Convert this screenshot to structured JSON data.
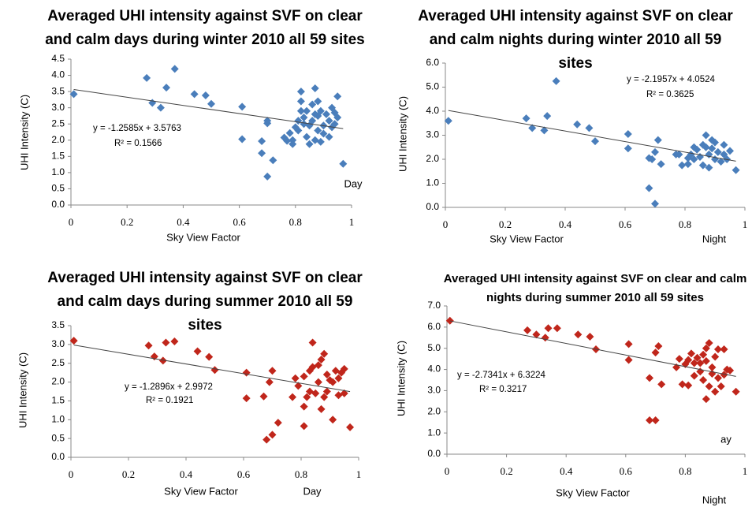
{
  "chart_data": [
    {
      "type": "scatter",
      "title": "Averaged UHI intensity against SVF on clear and calm days during winter 2010 all 59 sites",
      "x_label": "Sky View Factor",
      "y_label": "UHI Intensity (C)",
      "color": "#4a7ebb",
      "xlim": [
        0,
        1
      ],
      "xticks": [
        0,
        0.2,
        0.4,
        0.6,
        0.8,
        1
      ],
      "ylim": [
        0,
        4.5
      ],
      "yticks": [
        {
          "value": 0,
          "label": "0.0"
        },
        0.5,
        {
          "value": 1,
          "label": "1.0"
        },
        1.5,
        {
          "value": 2,
          "label": "2.0"
        },
        2.5,
        {
          "value": 3,
          "label": "3.0"
        },
        3.5,
        {
          "value": 4,
          "label": "4.0"
        },
        4.5
      ],
      "x": [
        0.01,
        0.27,
        0.29,
        0.32,
        0.34,
        0.37,
        0.44,
        0.48,
        0.5,
        0.61,
        0.61,
        0.68,
        0.68,
        0.7,
        0.7,
        0.7,
        0.72,
        0.76,
        0.77,
        0.78,
        0.79,
        0.79,
        0.8,
        0.81,
        0.81,
        0.82,
        0.82,
        0.82,
        0.83,
        0.83,
        0.84,
        0.84,
        0.85,
        0.85,
        0.86,
        0.86,
        0.87,
        0.87,
        0.87,
        0.88,
        0.88,
        0.88,
        0.89,
        0.89,
        0.9,
        0.9,
        0.91,
        0.92,
        0.92,
        0.93,
        0.93,
        0.94,
        0.94,
        0.95,
        0.95,
        0.97
      ],
      "values": [
        3.42,
        3.92,
        3.15,
        3.0,
        3.62,
        4.2,
        3.42,
        3.38,
        3.12,
        3.03,
        2.03,
        1.97,
        1.6,
        2.6,
        2.52,
        0.88,
        1.38,
        2.08,
        1.98,
        2.22,
        2.0,
        1.88,
        2.4,
        2.6,
        2.3,
        2.9,
        3.5,
        3.2,
        2.7,
        2.5,
        2.1,
        2.9,
        2.45,
        1.88,
        3.1,
        2.6,
        3.6,
        2.0,
        2.8,
        3.2,
        2.3,
        2.75,
        2.9,
        1.95,
        2.45,
        2.2,
        2.8,
        2.6,
        2.1,
        3.0,
        2.4,
        2.85,
        2.5,
        3.35,
        2.7,
        1.27
      ],
      "trendline": {
        "slope": -1.2585,
        "intercept": 3.5763,
        "equation_label": "y = -1.2585x + 3.5763",
        "r2_label": "R² = 0.1566"
      },
      "annotations": [
        "Day"
      ]
    },
    {
      "type": "scatter",
      "title": "Averaged UHI intensity against SVF on clear and calm nights during winter 2010 all 59 sites",
      "x_label": "Sky View Factor",
      "y_label": "UHI Intensity (C)",
      "color": "#4a7ebb",
      "xlim": [
        0,
        1
      ],
      "xticks": [
        0,
        0.2,
        0.4,
        0.6,
        0.8,
        1
      ],
      "ylim": [
        0,
        6
      ],
      "yticks": [
        {
          "value": 0,
          "label": "0.0"
        },
        {
          "value": 1,
          "label": "1.0"
        },
        {
          "value": 2,
          "label": "2.0"
        },
        {
          "value": 3,
          "label": "3.0"
        },
        {
          "value": 4,
          "label": "4.0"
        },
        {
          "value": 5,
          "label": "5.0"
        },
        {
          "value": 6,
          "label": "6.0"
        }
      ],
      "x": [
        0.01,
        0.27,
        0.29,
        0.33,
        0.34,
        0.37,
        0.44,
        0.48,
        0.5,
        0.61,
        0.61,
        0.68,
        0.68,
        0.69,
        0.7,
        0.7,
        0.71,
        0.72,
        0.77,
        0.78,
        0.79,
        0.81,
        0.81,
        0.82,
        0.83,
        0.83,
        0.84,
        0.85,
        0.86,
        0.86,
        0.87,
        0.87,
        0.88,
        0.88,
        0.89,
        0.89,
        0.9,
        0.9,
        0.91,
        0.92,
        0.93,
        0.93,
        0.94,
        0.95,
        0.97
      ],
      "values": [
        3.6,
        3.7,
        3.3,
        3.2,
        3.8,
        5.25,
        3.45,
        3.3,
        2.75,
        3.05,
        2.45,
        2.05,
        0.8,
        2.0,
        2.3,
        0.15,
        2.8,
        1.8,
        2.2,
        2.2,
        1.75,
        2.05,
        1.8,
        2.2,
        2.5,
        2.0,
        2.4,
        2.1,
        2.6,
        1.75,
        3.0,
        2.5,
        1.65,
        2.2,
        2.8,
        2.45,
        2.0,
        2.7,
        2.3,
        1.9,
        2.6,
        2.2,
        2.0,
        2.35,
        1.55
      ],
      "trendline": {
        "slope": -2.1957,
        "intercept": 4.0524,
        "equation_label": "y = -2.1957x + 4.0524",
        "r2_label": "R² = 0.3625"
      },
      "annotations": [
        "Night"
      ]
    },
    {
      "type": "scatter",
      "title": "Averaged UHI intensity against SVF on clear and calm days during summer 2010 all 59 sites",
      "x_label": "Sky View Factor",
      "y_label": "UHI Intensity (C)",
      "color": "#c0261b",
      "xlim": [
        0,
        1
      ],
      "xticks": [
        0,
        0.2,
        0.4,
        0.6,
        0.8,
        1
      ],
      "ylim": [
        0,
        3.5
      ],
      "yticks": [
        {
          "value": 0,
          "label": "0.0"
        },
        0.5,
        {
          "value": 1,
          "label": "1.0"
        },
        1.5,
        {
          "value": 2,
          "label": "2.0"
        },
        2.5,
        {
          "value": 3,
          "label": "3.0"
        },
        3.5
      ],
      "x": [
        0.01,
        0.27,
        0.29,
        0.32,
        0.33,
        0.36,
        0.44,
        0.48,
        0.5,
        0.61,
        0.61,
        0.67,
        0.68,
        0.69,
        0.7,
        0.7,
        0.72,
        0.77,
        0.78,
        0.79,
        0.81,
        0.81,
        0.81,
        0.82,
        0.83,
        0.83,
        0.84,
        0.84,
        0.85,
        0.86,
        0.86,
        0.87,
        0.87,
        0.88,
        0.88,
        0.89,
        0.89,
        0.9,
        0.91,
        0.91,
        0.92,
        0.93,
        0.93,
        0.94,
        0.95,
        0.95,
        0.97
      ],
      "values": [
        3.1,
        2.97,
        2.68,
        2.57,
        3.05,
        3.08,
        2.82,
        2.67,
        2.32,
        2.25,
        1.57,
        1.62,
        0.47,
        2.0,
        0.6,
        2.3,
        0.92,
        1.6,
        2.1,
        1.9,
        0.83,
        1.35,
        2.15,
        1.6,
        2.3,
        1.75,
        3.05,
        2.4,
        1.7,
        2.0,
        2.45,
        1.28,
        2.6,
        2.75,
        1.6,
        2.2,
        1.75,
        2.05,
        1.0,
        2.0,
        2.3,
        1.65,
        2.1,
        2.25,
        1.7,
        2.35,
        0.8
      ],
      "trendline": {
        "slope": -1.2896,
        "intercept": 2.9972,
        "equation_label": "y = -1.2896x + 2.9972",
        "r2_label": "R² = 0.1921"
      },
      "annotations": [
        "Day"
      ]
    },
    {
      "type": "scatter",
      "title": "Averaged UHI intensity against SVF on clear and calm nights during summer 2010 all 59 sites",
      "x_label": "Sky View Factor",
      "y_label": "UHI Intensity (C)",
      "color": "#c0261b",
      "xlim": [
        0,
        1
      ],
      "xticks": [
        0,
        0.2,
        0.4,
        0.6,
        0.8,
        1
      ],
      "ylim": [
        0,
        7
      ],
      "yticks": [
        {
          "value": 0,
          "label": "0.0"
        },
        {
          "value": 1,
          "label": "1.0"
        },
        {
          "value": 2,
          "label": "2.0"
        },
        {
          "value": 3,
          "label": "3.0"
        },
        {
          "value": 4,
          "label": "4.0"
        },
        {
          "value": 5,
          "label": "5.0"
        },
        {
          "value": 6,
          "label": "6.0"
        },
        {
          "value": 7,
          "label": "7.0"
        }
      ],
      "x": [
        0.01,
        0.27,
        0.3,
        0.33,
        0.34,
        0.37,
        0.44,
        0.48,
        0.5,
        0.61,
        0.61,
        0.68,
        0.68,
        0.7,
        0.7,
        0.71,
        0.72,
        0.77,
        0.78,
        0.79,
        0.8,
        0.81,
        0.81,
        0.82,
        0.83,
        0.83,
        0.84,
        0.85,
        0.85,
        0.86,
        0.86,
        0.87,
        0.87,
        0.87,
        0.88,
        0.88,
        0.89,
        0.89,
        0.9,
        0.9,
        0.91,
        0.91,
        0.92,
        0.93,
        0.93,
        0.94,
        0.95,
        0.97
      ],
      "values": [
        6.3,
        5.85,
        5.65,
        5.5,
        5.95,
        5.95,
        5.65,
        5.55,
        4.95,
        5.2,
        4.45,
        3.6,
        1.6,
        1.6,
        4.8,
        5.1,
        3.3,
        4.1,
        4.5,
        3.3,
        4.25,
        3.25,
        4.45,
        4.75,
        3.7,
        4.3,
        4.55,
        3.9,
        4.3,
        4.7,
        3.5,
        2.6,
        4.4,
        5.0,
        5.25,
        3.2,
        4.1,
        3.8,
        4.6,
        2.95,
        3.6,
        4.95,
        3.2,
        3.75,
        4.95,
        4.0,
        3.95,
        2.95
      ],
      "trendline": {
        "slope": -2.7341,
        "intercept": 6.3224,
        "equation_label": "y = -2.7341x + 6.3224",
        "r2_label": "R² = 0.3217"
      },
      "annotations": [
        "ay",
        "Night"
      ]
    }
  ]
}
